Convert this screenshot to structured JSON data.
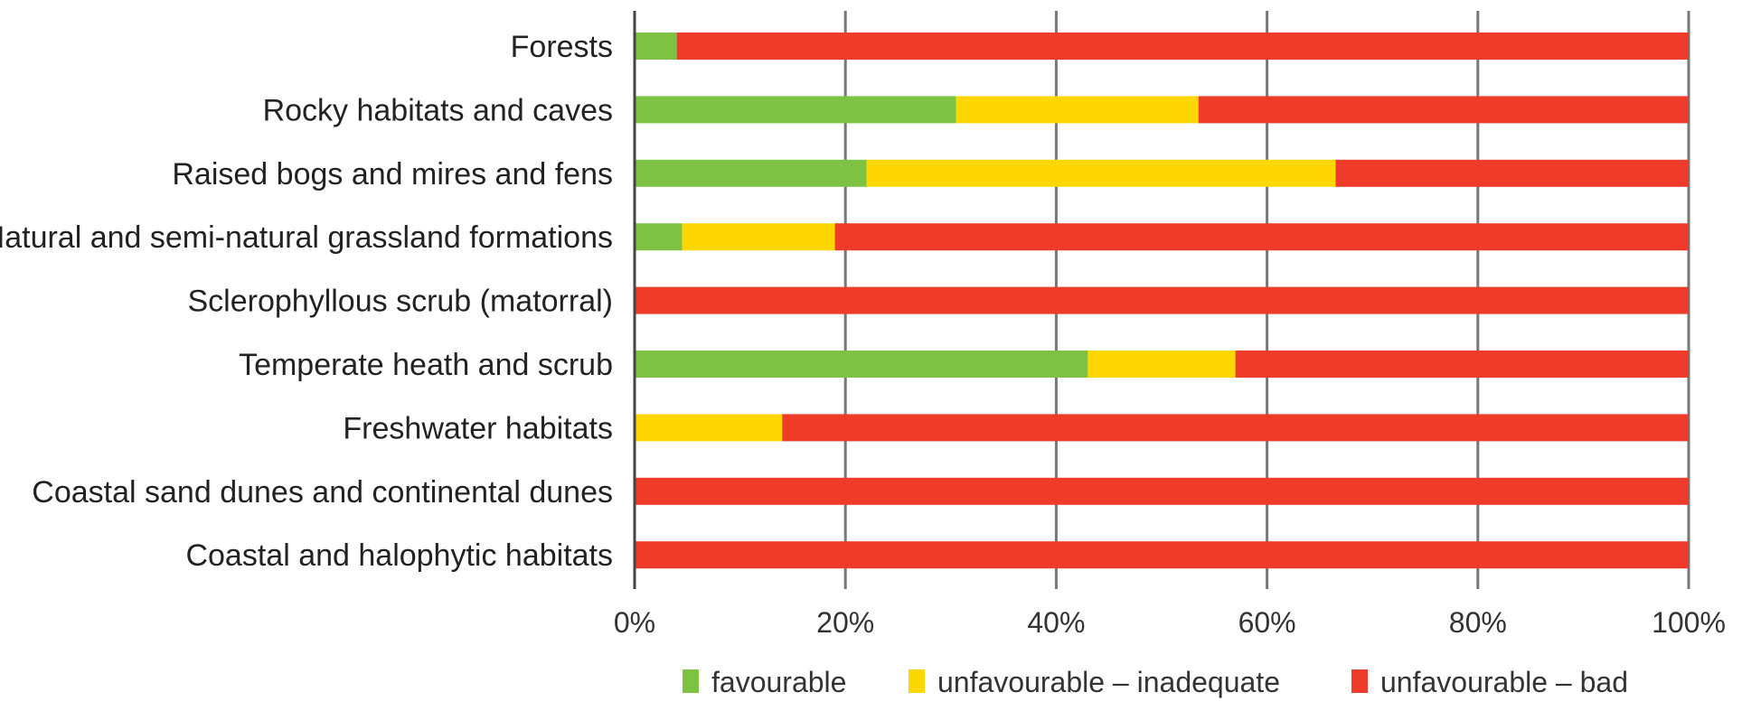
{
  "chart_data": {
    "type": "bar",
    "orientation": "horizontal",
    "stacked": true,
    "categories": [
      "Forests",
      "Rocky habitats and caves",
      "Raised bogs and mires and fens",
      "Natural and semi-natural grassland formations",
      "Sclerophyllous scrub (matorral)",
      "Temperate heath and scrub",
      "Freshwater habitats",
      "Coastal sand dunes and continental dunes",
      "Coastal and halophytic habitats"
    ],
    "series": [
      {
        "name": "favourable",
        "color": "#7dc242",
        "values": [
          4,
          30.5,
          22,
          4.5,
          0,
          43,
          0,
          0,
          0
        ]
      },
      {
        "name": "unfavourable – inadequate",
        "color": "#ffd700",
        "values": [
          0,
          23,
          44.5,
          14.5,
          0,
          14,
          14,
          0,
          0
        ]
      },
      {
        "name": "unfavourable – bad",
        "color": "#ee3b2a",
        "values": [
          96,
          46.5,
          33.5,
          81,
          100,
          43,
          86,
          100,
          100
        ]
      }
    ],
    "xlim": [
      0,
      100
    ],
    "xticks": [
      "0%",
      "20%",
      "40%",
      "60%",
      "80%",
      "100%"
    ],
    "grid": true,
    "legend": "bottom"
  }
}
